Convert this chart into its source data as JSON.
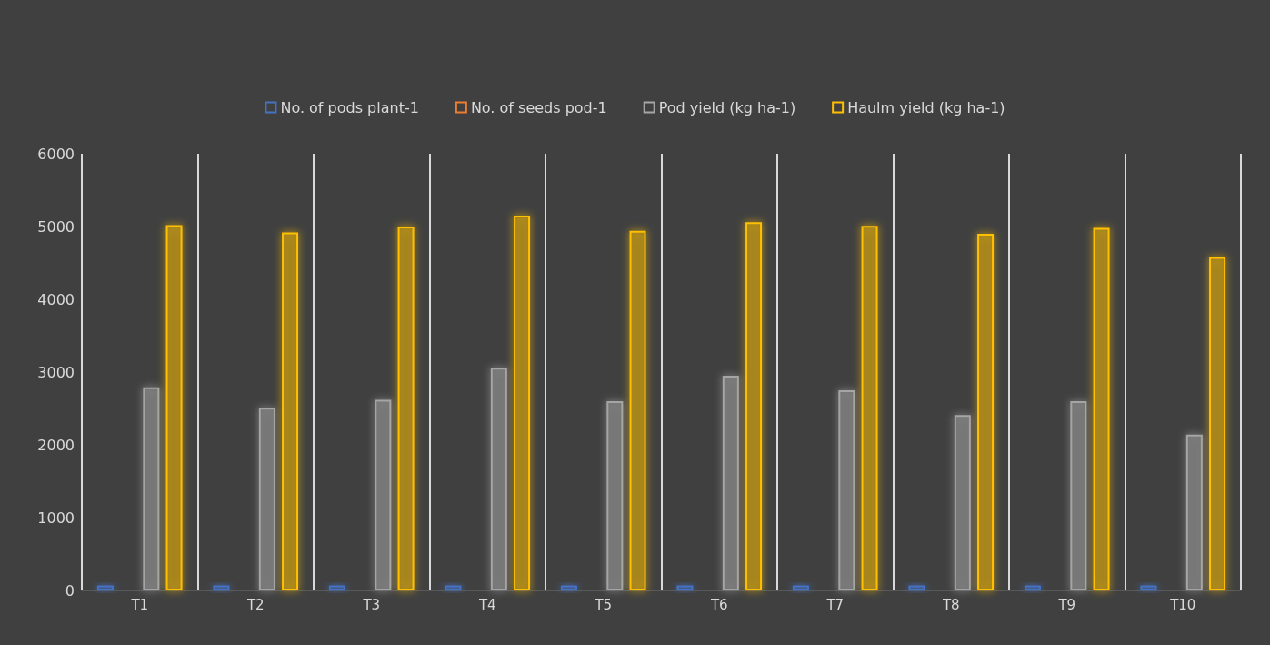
{
  "chart_data": {
    "type": "bar",
    "categories": [
      "T1",
      "T2",
      "T3",
      "T4",
      "T5",
      "T6",
      "T7",
      "T8",
      "T9",
      "T10"
    ],
    "series": [
      {
        "name": "No. of pods plant-1",
        "color": "#4472c4",
        "values": [
          70,
          70,
          70,
          70,
          70,
          70,
          70,
          70,
          70,
          70
        ]
      },
      {
        "name": "No. of seeds pod-1",
        "color": "#ed7d31",
        "values": [
          20,
          20,
          20,
          20,
          20,
          20,
          20,
          20,
          20,
          20
        ]
      },
      {
        "name": "Pod yield (kg ha-1)",
        "color": "#a5a5a5",
        "values": [
          2790,
          2510,
          2620,
          3060,
          2600,
          2950,
          2750,
          2410,
          2600,
          2140
        ]
      },
      {
        "name": "Haulm yield (kg ha-1)",
        "color": "#ffc000",
        "values": [
          5020,
          4920,
          5000,
          5150,
          4940,
          5060,
          5010,
          4900,
          4980,
          4580
        ]
      }
    ],
    "ylim": [
      0,
      6000
    ],
    "yticks": [
      0,
      1000,
      2000,
      3000,
      4000,
      5000,
      6000
    ],
    "grid": "x",
    "legend": "top"
  }
}
